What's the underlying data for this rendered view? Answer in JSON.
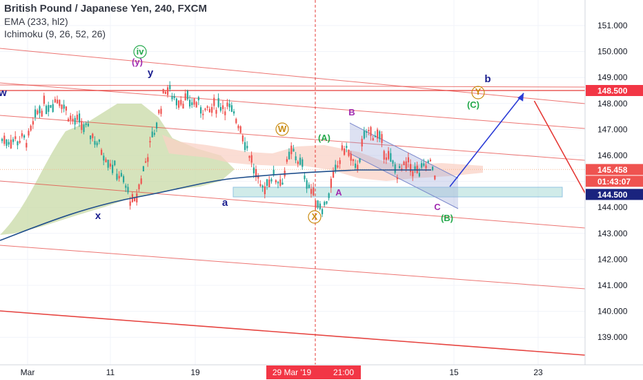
{
  "legend": {
    "symbol": "British Pound / Japanese Yen, 240, FXCM",
    "ema": "EMA (233, hl2)",
    "ichimoku": "Ichimoku (9, 26, 52, 26)"
  },
  "colors": {
    "up": "#26a69a",
    "down": "#ef5350",
    "ema": "#1f4e8c",
    "red_line": "#e53935",
    "cloud_green": "#c8d9a6",
    "cloud_red": "#f9d2c6",
    "zone_fill": "#b2dfdb",
    "zone_stroke": "#4a9ccf",
    "wave_blue": "#2a3bd6",
    "wave_green": "#22a84a",
    "wave_purple": "#a12bb0",
    "wave_orange": "#c98a0e",
    "wave_navy": "#1b1f8f",
    "last_price_bg": "#ef5350",
    "level_bg": "#1a237e",
    "marker_bg": "#f23645"
  },
  "axis": {
    "y_ticks": [
      "151.000",
      "150.000",
      "149.000",
      "148.000",
      "147.000",
      "146.000",
      "145.000",
      "144.000",
      "143.000",
      "142.000",
      "141.000",
      "140.000",
      "139.000"
    ],
    "x_ticks": [
      "Mar",
      "11",
      "19",
      "15",
      "23"
    ],
    "time_marker_date": "29 Mar '19",
    "time_marker_time": "21:00"
  },
  "price_labels": {
    "level_high": "148.500",
    "last_price": "145.458",
    "countdown": "01:43:07",
    "level_low": "144.500"
  },
  "wave_labels": {
    "w": "w",
    "iv": "iv",
    "y_paren": "(y)",
    "y": "y",
    "x": "x",
    "a": "a",
    "W": "W",
    "X": "X",
    "A_paren": "(A)",
    "B": "B",
    "A": "A",
    "C": "C",
    "B_paren": "(B)",
    "b": "b",
    "Y": "Y",
    "C_paren": "(C)"
  },
  "chart_data": {
    "type": "candlestick",
    "symbol": "British Pound / Japanese Yen",
    "timeframe": "240",
    "ylim": [
      138.0,
      152.2
    ],
    "indicators": [
      "EMA (233, hl2)",
      "Ichimoku (9, 26, 52, 26)"
    ],
    "levels": [
      148.5,
      144.5
    ],
    "last_price": 145.458,
    "price_path": [
      {
        "x": "Mar 1",
        "y": 146.6
      },
      {
        "x": "Mar 2",
        "y": 147.8
      },
      {
        "x": "Mar 4",
        "y": 148.2
      },
      {
        "x": "Mar 5",
        "y": 147.4
      },
      {
        "x": "Mar 6",
        "y": 147.2
      },
      {
        "x": "Mar 7",
        "y": 146.8
      },
      {
        "x": "Mar 8",
        "y": 146.2
      },
      {
        "x": "Mar 10",
        "y": 145.0
      },
      {
        "x": "Mar 11",
        "y": 144.0
      },
      {
        "x": "Mar 12",
        "y": 145.6
      },
      {
        "x": "Mar 13",
        "y": 147.0
      },
      {
        "x": "Mar 14",
        "y": 148.6
      },
      {
        "x": "Mar 15",
        "y": 148.2
      },
      {
        "x": "Mar 17",
        "y": 148.0
      },
      {
        "x": "Mar 18",
        "y": 147.6
      },
      {
        "x": "Mar 19",
        "y": 148.0
      },
      {
        "x": "Mar 20",
        "y": 147.8
      },
      {
        "x": "Mar 21",
        "y": 147.2
      },
      {
        "x": "Mar 22",
        "y": 146.0
      },
      {
        "x": "Mar 23",
        "y": 144.6
      },
      {
        "x": "Mar 24",
        "y": 145.2
      },
      {
        "x": "Mar 25",
        "y": 145.0
      },
      {
        "x": "Mar 26",
        "y": 146.2
      },
      {
        "x": "Mar 27",
        "y": 145.5
      },
      {
        "x": "Mar 28",
        "y": 144.4
      },
      {
        "x": "Mar 29",
        "y": 144.0
      },
      {
        "x": "Mar 30",
        "y": 145.2
      },
      {
        "x": "Mar 31",
        "y": 146.4
      },
      {
        "x": "Apr 1",
        "y": 145.4
      },
      {
        "x": "Apr 2",
        "y": 146.9
      },
      {
        "x": "Apr 3",
        "y": 146.8
      },
      {
        "x": "Apr 4",
        "y": 146.0
      },
      {
        "x": "Apr 5",
        "y": 145.3
      },
      {
        "x": "Apr 6",
        "y": 145.6
      },
      {
        "x": "Apr 7",
        "y": 145.3
      },
      {
        "x": "Apr 8",
        "y": 145.7
      },
      {
        "x": "Apr 9",
        "y": 145.0
      },
      {
        "x": "Apr 10",
        "y": 145.46
      }
    ],
    "projection": [
      {
        "x": "Apr 10",
        "y": 144.8
      },
      {
        "x": "Apr 17",
        "y": 148.4
      },
      {
        "x": "Apr 18",
        "y": 148.1
      },
      {
        "x": "Apr 26",
        "y": 142.2
      }
    ]
  }
}
